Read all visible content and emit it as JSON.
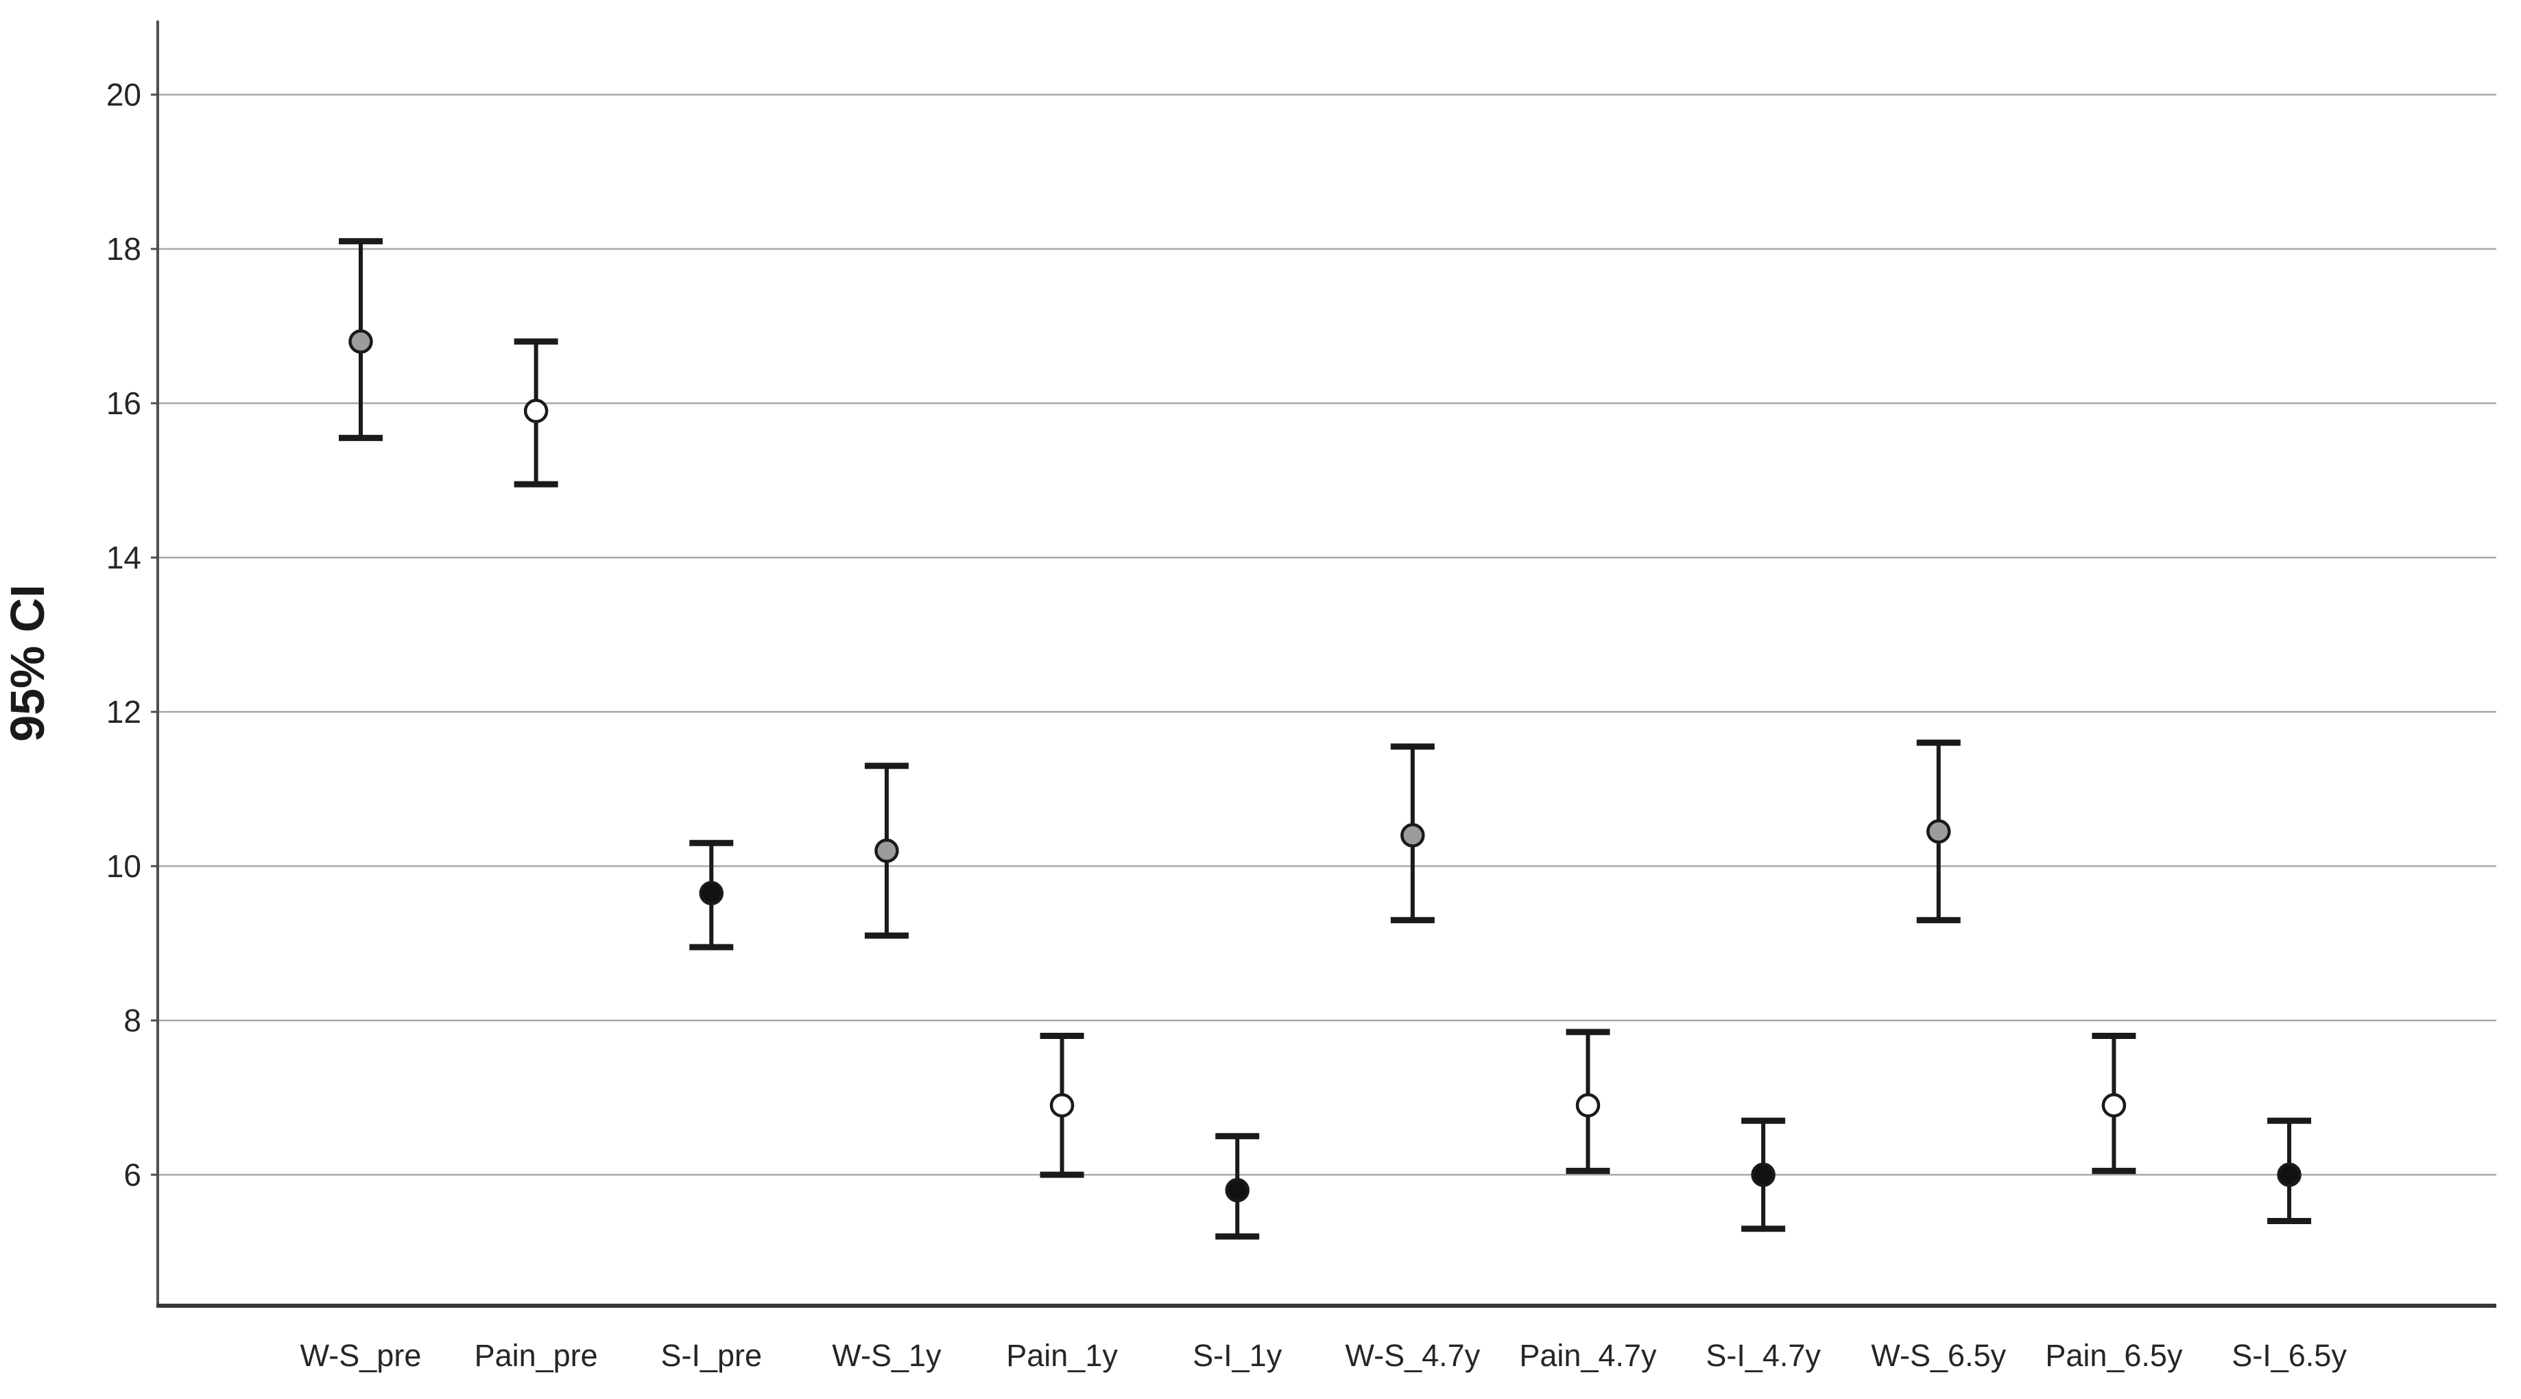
{
  "page": {
    "background": "#ffffff"
  },
  "chart_data": {
    "type": "errorbar",
    "title": "",
    "ylabel": "95% CI",
    "xlabel": "",
    "ylim": [
      4.3,
      21.0
    ],
    "yticks": [
      6,
      8,
      10,
      12,
      14,
      16,
      18,
      20
    ],
    "grid": "horizontal",
    "legend": "none",
    "marker_key": [
      {
        "series": "W-S",
        "marker": "gray"
      },
      {
        "series": "Pain",
        "marker": "white"
      },
      {
        "series": "S-I",
        "marker": "black"
      }
    ],
    "categories": [
      "W-S_pre",
      "Pain_pre",
      "S-I_pre",
      "W-S_1y",
      "Pain_1y",
      "S-I_1y",
      "W-S_4.7y",
      "Pain_4.7y",
      "S-I_4.7y",
      "W-S_6.5y",
      "Pain_6.5y",
      "S-I_6.5y"
    ],
    "points": [
      {
        "label": "W-S_pre",
        "marker": "gray",
        "mean": 16.8,
        "ci_low": 15.55,
        "ci_high": 18.1
      },
      {
        "label": "Pain_pre",
        "marker": "white",
        "mean": 15.9,
        "ci_low": 14.95,
        "ci_high": 16.8
      },
      {
        "label": "S-I_pre",
        "marker": "black",
        "mean": 9.65,
        "ci_low": 8.95,
        "ci_high": 10.3
      },
      {
        "label": "W-S_1y",
        "marker": "gray",
        "mean": 10.2,
        "ci_low": 9.1,
        "ci_high": 11.3
      },
      {
        "label": "Pain_1y",
        "marker": "white",
        "mean": 6.9,
        "ci_low": 6.0,
        "ci_high": 7.8
      },
      {
        "label": "S-I_1y",
        "marker": "black",
        "mean": 5.8,
        "ci_low": 5.2,
        "ci_high": 6.5
      },
      {
        "label": "W-S_4.7y",
        "marker": "gray",
        "mean": 10.4,
        "ci_low": 9.3,
        "ci_high": 11.55
      },
      {
        "label": "Pain_4.7y",
        "marker": "white",
        "mean": 6.9,
        "ci_low": 6.05,
        "ci_high": 7.85
      },
      {
        "label": "S-I_4.7y",
        "marker": "black",
        "mean": 6.0,
        "ci_low": 5.3,
        "ci_high": 6.7
      },
      {
        "label": "W-S_6.5y",
        "marker": "gray",
        "mean": 10.45,
        "ci_low": 9.3,
        "ci_high": 11.6
      },
      {
        "label": "Pain_6.5y",
        "marker": "white",
        "mean": 6.9,
        "ci_low": 6.05,
        "ci_high": 7.8
      },
      {
        "label": "S-I_6.5y",
        "marker": "black",
        "mean": 6.0,
        "ci_low": 5.4,
        "ci_high": 6.7
      }
    ],
    "colors": {
      "marker_gray": "#9C9C9C",
      "marker_white": "#FFFFFF",
      "marker_black": "#111111",
      "marker_outline": "#1A1A1A",
      "error_bar": "#1A1A1A",
      "gridline": "#A8A8A8",
      "axis_y": "#4F4F4F",
      "axis_x": "#383838",
      "text": "#262626"
    }
  }
}
